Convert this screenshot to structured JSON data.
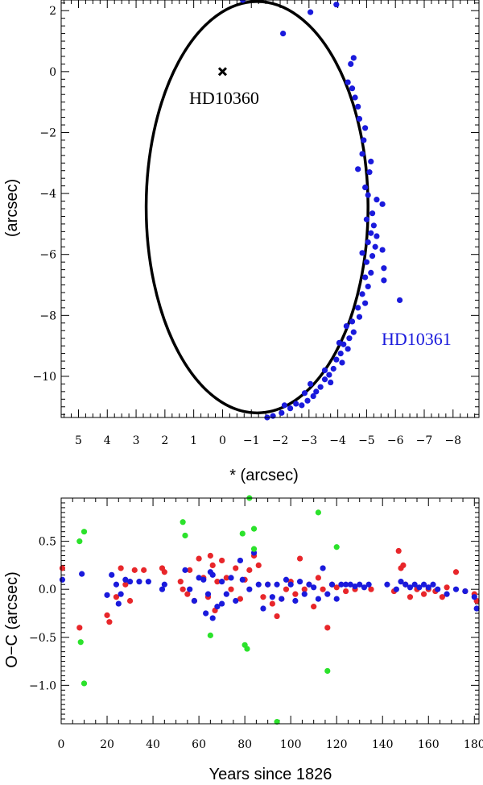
{
  "chart_data": [
    {
      "type": "scatter",
      "title": "",
      "xlabel": "* (arcsec)",
      "ylabel": "(arcsec)",
      "xlim": [
        5.6,
        -8.9
      ],
      "ylim": [
        -11.35,
        2.35
      ],
      "x_ticks": [
        5,
        4,
        3,
        2,
        1,
        0,
        -1,
        -2,
        -3,
        -4,
        -5,
        -6,
        -7,
        -8
      ],
      "x_tick_labels": [
        "5",
        "4",
        "3",
        "2",
        "1",
        "0",
        "−1",
        "−2",
        "−3",
        "−4",
        "−5",
        "−6",
        "−7",
        "−8"
      ],
      "y_ticks": [
        2,
        0,
        -2,
        -4,
        -6,
        -8,
        -10
      ],
      "y_tick_labels": [
        "2",
        "0",
        "−2",
        "−4",
        "−6",
        "−8",
        "−10"
      ],
      "primary": {
        "name": "HD10360",
        "x": 0,
        "y": 0,
        "marker": "cross",
        "color": "#000000"
      },
      "orbit": {
        "center_x": -1.2,
        "center_y": -4.45,
        "semi_x": 3.85,
        "semi_y": 6.75,
        "color": "#000000"
      },
      "series": [
        {
          "name": "HD10361",
          "color": "#1a1adc",
          "points": [
            [
              -0.7,
              2.35
            ],
            [
              -2.1,
              1.25
            ],
            [
              -3.05,
              1.95
            ],
            [
              -3.95,
              2.2
            ],
            [
              -4.55,
              0.45
            ],
            [
              -4.45,
              0.25
            ],
            [
              -4.35,
              -0.35
            ],
            [
              -4.5,
              -0.55
            ],
            [
              -4.6,
              -0.85
            ],
            [
              -4.7,
              -1.15
            ],
            [
              -4.75,
              -1.55
            ],
            [
              -4.95,
              -1.85
            ],
            [
              -4.9,
              -2.25
            ],
            [
              -4.85,
              -2.7
            ],
            [
              -5.15,
              -2.95
            ],
            [
              -4.7,
              -3.2
            ],
            [
              -5.1,
              -3.3
            ],
            [
              -4.95,
              -3.8
            ],
            [
              -5.05,
              -4.05
            ],
            [
              -5.35,
              -4.2
            ],
            [
              -5.55,
              -4.35
            ],
            [
              -5.2,
              -4.65
            ],
            [
              -5.0,
              -4.85
            ],
            [
              -5.25,
              -5.05
            ],
            [
              -5.15,
              -5.3
            ],
            [
              -5.35,
              -5.4
            ],
            [
              -5.05,
              -5.6
            ],
            [
              -5.3,
              -5.75
            ],
            [
              -4.85,
              -5.95
            ],
            [
              -5.2,
              -6.05
            ],
            [
              -5.55,
              -5.85
            ],
            [
              -5.6,
              -6.45
            ],
            [
              -5.0,
              -6.25
            ],
            [
              -5.15,
              -6.6
            ],
            [
              -4.95,
              -6.75
            ],
            [
              -5.6,
              -6.85
            ],
            [
              -5.05,
              -7.05
            ],
            [
              -4.85,
              -7.3
            ],
            [
              -4.95,
              -7.6
            ],
            [
              -6.15,
              -7.5
            ],
            [
              -4.7,
              -7.75
            ],
            [
              -4.75,
              -8.05
            ],
            [
              -4.5,
              -8.2
            ],
            [
              -4.3,
              -8.35
            ],
            [
              -4.55,
              -8.55
            ],
            [
              -4.4,
              -8.75
            ],
            [
              -4.2,
              -8.95
            ],
            [
              -4.35,
              -9.1
            ],
            [
              -4.1,
              -9.25
            ],
            [
              -3.95,
              -9.45
            ],
            [
              -4.15,
              -9.55
            ],
            [
              -3.85,
              -9.75
            ],
            [
              -3.7,
              -9.95
            ],
            [
              -3.55,
              -10.1
            ],
            [
              -3.75,
              -10.2
            ],
            [
              -3.4,
              -10.35
            ],
            [
              -3.25,
              -10.5
            ],
            [
              -3.05,
              -10.25
            ],
            [
              -3.15,
              -10.65
            ],
            [
              -2.95,
              -10.8
            ],
            [
              -2.75,
              -10.95
            ],
            [
              -2.55,
              -10.9
            ],
            [
              -2.35,
              -11.05
            ],
            [
              -2.15,
              -10.95
            ],
            [
              -2.05,
              -11.2
            ],
            [
              -1.75,
              -11.3
            ],
            [
              -1.55,
              -11.35
            ],
            [
              -2.85,
              -10.55
            ],
            [
              -3.55,
              -9.8
            ],
            [
              -4.05,
              -8.9
            ]
          ]
        }
      ]
    },
    {
      "type": "scatter",
      "title": "",
      "xlabel": "Years since 1826",
      "ylabel": "O−C (arcsec)",
      "xlim": [
        0,
        182
      ],
      "ylim": [
        -1.4,
        0.95
      ],
      "x_ticks": [
        0,
        20,
        40,
        60,
        80,
        100,
        120,
        140,
        160,
        180
      ],
      "x_tick_labels": [
        "0",
        "20",
        "40",
        "60",
        "80",
        "100",
        "120",
        "140",
        "160",
        "180"
      ],
      "y_ticks": [
        0.5,
        0.0,
        -0.5,
        -1.0
      ],
      "y_tick_labels": [
        "0.5",
        "0.0",
        "−0.5",
        "−1.0"
      ],
      "series": [
        {
          "name": "red",
          "color": "#e8262a",
          "points": [
            [
              0.5,
              0.22
            ],
            [
              8,
              -0.4
            ],
            [
              20,
              -0.27
            ],
            [
              21,
              -0.34
            ],
            [
              24,
              -0.08
            ],
            [
              26,
              0.22
            ],
            [
              28,
              0.05
            ],
            [
              30,
              -0.12
            ],
            [
              32,
              0.2
            ],
            [
              36,
              0.2
            ],
            [
              44,
              0.22
            ],
            [
              45,
              0.18
            ],
            [
              52,
              0.08
            ],
            [
              53,
              0.0
            ],
            [
              55,
              -0.05
            ],
            [
              56,
              0.2
            ],
            [
              58,
              -0.12
            ],
            [
              60,
              0.32
            ],
            [
              62,
              0.12
            ],
            [
              64,
              -0.08
            ],
            [
              65,
              0.35
            ],
            [
              66,
              0.25
            ],
            [
              67,
              -0.22
            ],
            [
              68,
              0.08
            ],
            [
              70,
              0.3
            ],
            [
              72,
              0.12
            ],
            [
              74,
              0.0
            ],
            [
              76,
              0.22
            ],
            [
              78,
              -0.1
            ],
            [
              80,
              0.1
            ],
            [
              82,
              0.2
            ],
            [
              84,
              0.35
            ],
            [
              86,
              0.25
            ],
            [
              88,
              -0.08
            ],
            [
              90,
              0.05
            ],
            [
              92,
              -0.15
            ],
            [
              94,
              -0.28
            ],
            [
              96,
              -0.1
            ],
            [
              98,
              0.0
            ],
            [
              100,
              0.08
            ],
            [
              102,
              -0.05
            ],
            [
              104,
              0.32
            ],
            [
              106,
              0.0
            ],
            [
              108,
              0.05
            ],
            [
              110,
              -0.18
            ],
            [
              112,
              0.12
            ],
            [
              114,
              0.0
            ],
            [
              116,
              -0.4
            ],
            [
              118,
              0.05
            ],
            [
              120,
              0.02
            ],
            [
              124,
              -0.02
            ],
            [
              128,
              0.0
            ],
            [
              135,
              0.0
            ],
            [
              145,
              -0.02
            ],
            [
              147,
              0.4
            ],
            [
              148,
              0.22
            ],
            [
              150,
              0.05
            ],
            [
              152,
              -0.08
            ],
            [
              155,
              0.0
            ],
            [
              158,
              -0.05
            ],
            [
              160,
              0.02
            ],
            [
              163,
              -0.02
            ],
            [
              166,
              -0.08
            ],
            [
              168,
              0.02
            ],
            [
              172,
              0.18
            ],
            [
              176,
              -0.02
            ],
            [
              180,
              -0.05
            ],
            [
              181,
              -0.12
            ],
            [
              149,
              0.25
            ],
            [
              160,
              0.0
            ]
          ]
        },
        {
          "name": "blue",
          "color": "#1a1adc",
          "points": [
            [
              0.5,
              0.1
            ],
            [
              9,
              0.16
            ],
            [
              20,
              -0.06
            ],
            [
              22,
              0.15
            ],
            [
              24,
              0.05
            ],
            [
              25,
              -0.15
            ],
            [
              26,
              -0.05
            ],
            [
              28,
              0.1
            ],
            [
              30,
              0.08
            ],
            [
              34,
              0.08
            ],
            [
              38,
              0.08
            ],
            [
              44,
              0.0
            ],
            [
              45,
              0.05
            ],
            [
              54,
              0.2
            ],
            [
              56,
              0.0
            ],
            [
              58,
              -0.12
            ],
            [
              60,
              0.12
            ],
            [
              62,
              0.1
            ],
            [
              63,
              -0.25
            ],
            [
              64,
              -0.05
            ],
            [
              65,
              0.18
            ],
            [
              66,
              0.15
            ],
            [
              68,
              -0.18
            ],
            [
              70,
              0.08
            ],
            [
              72,
              -0.05
            ],
            [
              74,
              0.12
            ],
            [
              76,
              -0.12
            ],
            [
              78,
              0.3
            ],
            [
              79,
              0.1
            ],
            [
              82,
              0.0
            ],
            [
              84,
              0.38
            ],
            [
              86,
              0.05
            ],
            [
              88,
              -0.2
            ],
            [
              90,
              0.05
            ],
            [
              92,
              -0.08
            ],
            [
              94,
              0.05
            ],
            [
              96,
              -0.1
            ],
            [
              98,
              0.1
            ],
            [
              100,
              0.05
            ],
            [
              102,
              -0.12
            ],
            [
              104,
              0.08
            ],
            [
              106,
              -0.05
            ],
            [
              108,
              0.05
            ],
            [
              110,
              0.02
            ],
            [
              112,
              -0.1
            ],
            [
              114,
              0.22
            ],
            [
              116,
              -0.05
            ],
            [
              118,
              0.05
            ],
            [
              120,
              -0.1
            ],
            [
              122,
              0.05
            ],
            [
              124,
              0.05
            ],
            [
              126,
              0.05
            ],
            [
              128,
              0.03
            ],
            [
              130,
              0.05
            ],
            [
              132,
              0.02
            ],
            [
              134,
              0.05
            ],
            [
              142,
              0.05
            ],
            [
              146,
              0.0
            ],
            [
              148,
              0.08
            ],
            [
              150,
              0.05
            ],
            [
              152,
              0.02
            ],
            [
              154,
              0.05
            ],
            [
              156,
              0.02
            ],
            [
              158,
              0.05
            ],
            [
              160,
              0.02
            ],
            [
              162,
              0.05
            ],
            [
              164,
              0.0
            ],
            [
              168,
              -0.05
            ],
            [
              172,
              0.0
            ],
            [
              176,
              -0.02
            ],
            [
              180,
              -0.08
            ],
            [
              181,
              -0.2
            ],
            [
              66,
              -0.3
            ],
            [
              70,
              -0.15
            ]
          ]
        },
        {
          "name": "green",
          "color": "#2be22b",
          "points": [
            [
              8,
              0.5
            ],
            [
              10,
              0.6
            ],
            [
              8.5,
              -0.55
            ],
            [
              10,
              -0.98
            ],
            [
              53,
              0.7
            ],
            [
              54,
              0.56
            ],
            [
              65,
              -0.48
            ],
            [
              79,
              0.58
            ],
            [
              80,
              -0.58
            ],
            [
              81,
              -0.62
            ],
            [
              82,
              0.95
            ],
            [
              84,
              0.63
            ],
            [
              84,
              0.42
            ],
            [
              94,
              -1.38
            ],
            [
              112,
              0.8
            ],
            [
              116,
              -0.85
            ],
            [
              120,
              0.44
            ]
          ]
        }
      ]
    }
  ]
}
